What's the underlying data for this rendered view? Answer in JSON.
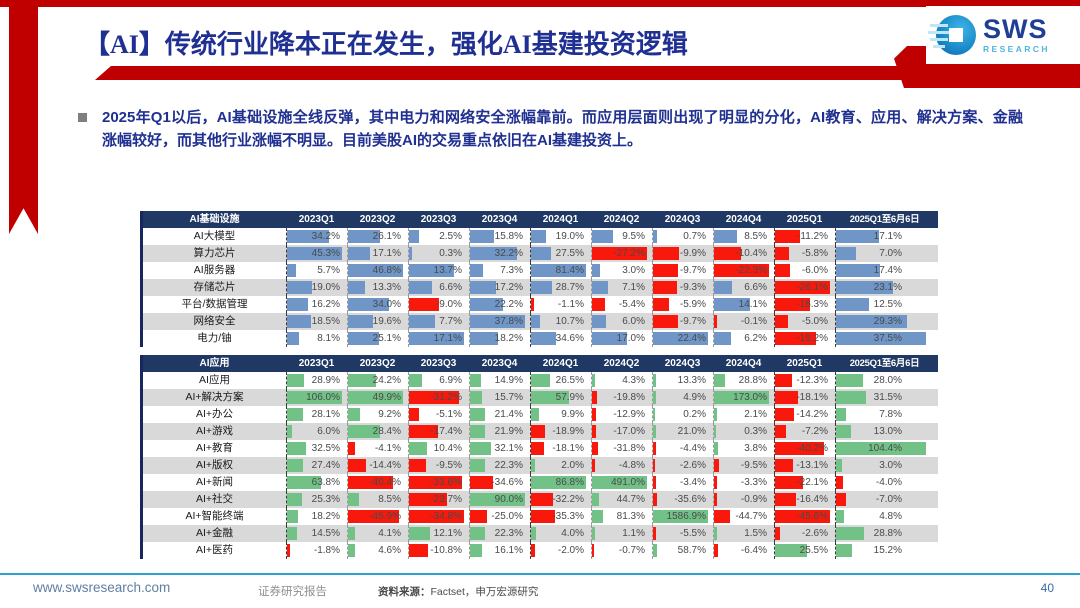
{
  "header": {
    "title": "【AI】传统行业降本正在发生，强化AI基建投资逻辑",
    "logo_text": "SWS",
    "logo_subtext": "RESEARCH"
  },
  "bullet": {
    "text": "2025年Q1以后，AI基础设施全线反弹，其中电力和网络安全涨幅靠前。而应用层面则出现了明显的分化，AI教育、应用、解决方案、金融涨幅较好，而其他行业涨幅不明显。目前美股AI的交易重点依旧在AI基建投资上。"
  },
  "tables": [
    {
      "name": "AI基础设施",
      "columns": [
        "2023Q1",
        "2023Q2",
        "2023Q3",
        "2023Q4",
        "2024Q1",
        "2024Q2",
        "2024Q3",
        "2024Q4",
        "2025Q1",
        "2025Q1至6月6日"
      ],
      "positive_color": "#6F96C6",
      "negative_color": "#F8190C",
      "rows": [
        {
          "label": "AI大模型",
          "values": [
            34.2,
            26.1,
            2.5,
            15.8,
            19.0,
            9.5,
            0.7,
            8.5,
            -11.2,
            17.1
          ]
        },
        {
          "label": "算力芯片",
          "values": [
            45.3,
            17.1,
            0.3,
            32.2,
            27.5,
            -27.2,
            -9.9,
            -10.4,
            -5.8,
            7.0
          ]
        },
        {
          "label": "AI服务器",
          "values": [
            5.7,
            46.8,
            13.7,
            7.3,
            81.4,
            3.0,
            -9.7,
            -22.3,
            -6.0,
            17.4
          ]
        },
        {
          "label": "存储芯片",
          "values": [
            19.0,
            13.3,
            6.6,
            17.2,
            28.7,
            7.1,
            -9.3,
            6.6,
            -26.1,
            23.1
          ]
        },
        {
          "label": "平台/数据管理",
          "values": [
            16.2,
            34.0,
            -9.0,
            22.2,
            -1.1,
            -5.4,
            -5.9,
            14.1,
            -16.3,
            12.5
          ]
        },
        {
          "label": "网络安全",
          "values": [
            18.5,
            19.6,
            7.7,
            37.8,
            10.7,
            6.0,
            -9.7,
            -0.1,
            -5.0,
            29.3
          ]
        },
        {
          "label": "电力/铀",
          "values": [
            8.1,
            25.1,
            17.1,
            18.2,
            34.6,
            17.0,
            22.4,
            6.2,
            -19.2,
            37.5
          ]
        }
      ]
    },
    {
      "name": "AI应用",
      "columns": [
        "2023Q1",
        "2023Q2",
        "2023Q3",
        "2023Q4",
        "2024Q1",
        "2024Q2",
        "2024Q3",
        "2024Q4",
        "2025Q1",
        "2025Q1至6月6日"
      ],
      "positive_color": "#72C287",
      "negative_color": "#F8190C",
      "rows": [
        {
          "label": "AI应用",
          "values": [
            28.9,
            24.2,
            6.9,
            14.9,
            26.5,
            4.3,
            13.3,
            28.8,
            -12.3,
            28.0
          ]
        },
        {
          "label": "AI+解决方案",
          "values": [
            106.0,
            49.9,
            -31.2,
            15.7,
            57.9,
            -19.8,
            4.9,
            173.0,
            -18.1,
            31.5
          ]
        },
        {
          "label": "AI+办公",
          "values": [
            28.1,
            9.2,
            -5.1,
            21.4,
            9.9,
            -12.9,
            0.2,
            2.1,
            -14.2,
            7.8
          ]
        },
        {
          "label": "AI+游戏",
          "values": [
            6.0,
            28.4,
            -17.4,
            21.9,
            -18.9,
            -17.0,
            21.0,
            0.3,
            -7.2,
            13.0
          ]
        },
        {
          "label": "AI+教育",
          "values": [
            32.5,
            -4.1,
            10.4,
            32.1,
            -18.1,
            -31.8,
            -4.4,
            3.8,
            -40.2,
            104.4
          ]
        },
        {
          "label": "AI+版权",
          "values": [
            27.4,
            -14.4,
            -9.5,
            22.3,
            2.0,
            -4.8,
            -2.6,
            -9.5,
            -13.1,
            3.0
          ]
        },
        {
          "label": "AI+新闻",
          "values": [
            63.8,
            -40.4,
            -33.6,
            -34.6,
            86.8,
            491.0,
            -3.4,
            -3.3,
            -22.1,
            -4.0
          ]
        },
        {
          "label": "AI+社交",
          "values": [
            25.3,
            8.5,
            -23.7,
            90.0,
            -32.2,
            44.7,
            -35.6,
            -0.9,
            -16.4,
            -7.0
          ]
        },
        {
          "label": "AI+智能终端",
          "values": [
            18.2,
            -45.9,
            -34.8,
            -25.0,
            -35.3,
            81.3,
            1586.9,
            -44.7,
            -45.6,
            4.8
          ]
        },
        {
          "label": "AI+金融",
          "values": [
            14.5,
            4.1,
            12.1,
            22.3,
            4.0,
            1.1,
            -5.5,
            1.5,
            -2.6,
            28.8
          ]
        },
        {
          "label": "AI+医药",
          "values": [
            -1.8,
            4.6,
            -10.8,
            16.1,
            -2.0,
            -0.7,
            58.7,
            -6.4,
            25.5,
            15.2
          ]
        }
      ]
    }
  ],
  "footer": {
    "website": "www.swsresearch.com",
    "report_type": "证券研究报告",
    "source_label": "资料来源：",
    "source_value": "Factset，申万宏源研究",
    "page": "40"
  }
}
